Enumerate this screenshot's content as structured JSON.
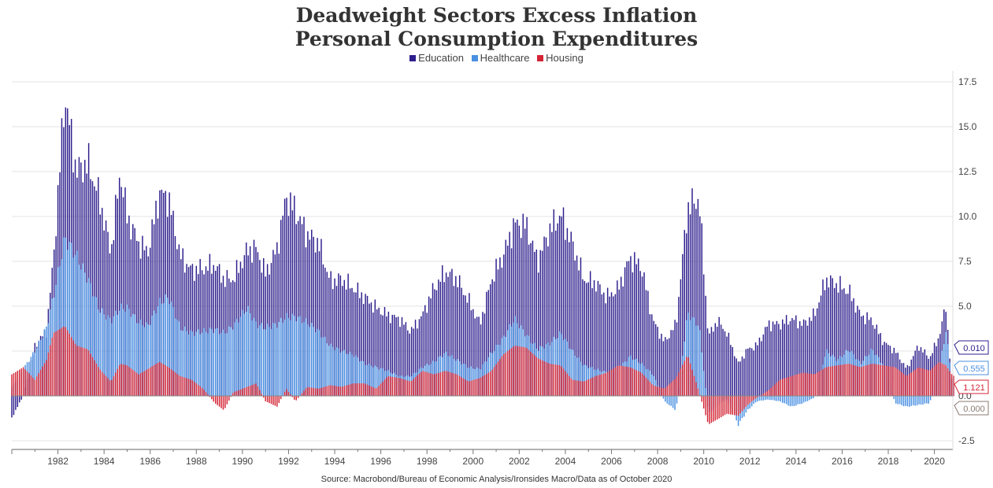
{
  "chart_data": {
    "type": "bar",
    "stacked": true,
    "title": "Deadweight Sectors Excess Inflation",
    "subtitle": "Personal Consumption Expenditures",
    "source": "Source: Macrobond/Bureau of Economic Analysis/Ironsides Macro/Data as of October 2020",
    "x_ticks": [
      "1982",
      "1984",
      "1986",
      "1988",
      "1990",
      "1992",
      "1994",
      "1996",
      "1998",
      "2000",
      "2002",
      "2004",
      "2006",
      "2008",
      "2010",
      "2012",
      "2014",
      "2016",
      "2018",
      "2020"
    ],
    "y_ticks": [
      "-2.5",
      "0.0",
      "2.5",
      "5.0",
      "7.5",
      "10.0",
      "12.5",
      "15.0",
      "17.5"
    ],
    "ylim": [
      -2.5,
      17.5
    ],
    "xlim": [
      1980.0,
      2020.8
    ],
    "grid": true,
    "legend_position": "top-center",
    "series": [
      {
        "name": "Housing",
        "color": "#d32535",
        "points": [
          [
            1980.0,
            1.2
          ],
          [
            1980.5,
            1.6
          ],
          [
            1981.0,
            0.9
          ],
          [
            1981.5,
            2.0
          ],
          [
            1981.8,
            3.5
          ],
          [
            1982.3,
            3.9
          ],
          [
            1982.8,
            2.8
          ],
          [
            1983.3,
            2.6
          ],
          [
            1983.8,
            1.5
          ],
          [
            1984.3,
            0.8
          ],
          [
            1984.7,
            1.8
          ],
          [
            1985.0,
            1.7
          ],
          [
            1985.5,
            1.2
          ],
          [
            1985.9,
            1.5
          ],
          [
            1986.4,
            1.9
          ],
          [
            1986.8,
            1.6
          ],
          [
            1987.3,
            1.1
          ],
          [
            1987.8,
            0.9
          ],
          [
            1988.3,
            0.4
          ],
          [
            1988.8,
            -0.4
          ],
          [
            1989.2,
            -0.8
          ],
          [
            1989.6,
            0.2
          ],
          [
            1990.2,
            0.5
          ],
          [
            1990.6,
            0.7
          ],
          [
            1991.0,
            -0.3
          ],
          [
            1991.5,
            -0.6
          ],
          [
            1991.9,
            0.4
          ],
          [
            1992.3,
            -0.3
          ],
          [
            1992.8,
            0.5
          ],
          [
            1993.3,
            0.4
          ],
          [
            1993.8,
            0.6
          ],
          [
            1994.3,
            0.5
          ],
          [
            1994.8,
            0.7
          ],
          [
            1995.3,
            0.7
          ],
          [
            1995.8,
            0.4
          ],
          [
            1996.3,
            1.1
          ],
          [
            1996.8,
            1.0
          ],
          [
            1997.3,
            0.8
          ],
          [
            1997.8,
            1.4
          ],
          [
            1998.3,
            1.2
          ],
          [
            1998.8,
            1.4
          ],
          [
            1999.3,
            1.2
          ],
          [
            1999.8,
            0.8
          ],
          [
            2000.3,
            1.0
          ],
          [
            2000.8,
            1.4
          ],
          [
            2001.3,
            2.3
          ],
          [
            2001.8,
            2.8
          ],
          [
            2002.3,
            2.7
          ],
          [
            2002.8,
            2.1
          ],
          [
            2003.3,
            1.8
          ],
          [
            2003.8,
            1.7
          ],
          [
            2004.3,
            0.9
          ],
          [
            2004.8,
            0.8
          ],
          [
            2005.3,
            1.1
          ],
          [
            2005.8,
            1.3
          ],
          [
            2006.3,
            1.7
          ],
          [
            2006.8,
            1.6
          ],
          [
            2007.3,
            1.3
          ],
          [
            2007.8,
            0.6
          ],
          [
            2008.3,
            0.4
          ],
          [
            2008.8,
            1.0
          ],
          [
            2009.3,
            2.3
          ],
          [
            2009.8,
            0.2
          ],
          [
            2010.2,
            -1.6
          ],
          [
            2010.6,
            -1.3
          ],
          [
            2011.0,
            -1.0
          ],
          [
            2011.5,
            -1.1
          ],
          [
            2011.9,
            -0.5
          ],
          [
            2012.3,
            -0.1
          ],
          [
            2012.8,
            0.3
          ],
          [
            2013.3,
            0.9
          ],
          [
            2013.8,
            1.1
          ],
          [
            2014.3,
            1.3
          ],
          [
            2014.8,
            1.2
          ],
          [
            2015.3,
            1.6
          ],
          [
            2015.8,
            1.7
          ],
          [
            2016.3,
            1.8
          ],
          [
            2016.8,
            1.6
          ],
          [
            2017.3,
            1.8
          ],
          [
            2017.8,
            1.7
          ],
          [
            2018.3,
            1.6
          ],
          [
            2018.8,
            1.1
          ],
          [
            2019.3,
            1.6
          ],
          [
            2019.8,
            1.4
          ],
          [
            2020.2,
            1.9
          ],
          [
            2020.5,
            1.7
          ],
          [
            2020.8,
            1.121
          ]
        ]
      },
      {
        "name": "Healthcare",
        "color": "#4a90e2",
        "points": [
          [
            1980.0,
            0.5
          ],
          [
            1980.5,
            1.5
          ],
          [
            1981.0,
            2.5
          ],
          [
            1981.5,
            3.8
          ],
          [
            1981.8,
            5.5
          ],
          [
            1982.3,
            8.8
          ],
          [
            1982.8,
            7.8
          ],
          [
            1983.3,
            6.5
          ],
          [
            1983.8,
            4.8
          ],
          [
            1984.3,
            4.2
          ],
          [
            1984.7,
            4.9
          ],
          [
            1985.0,
            4.9
          ],
          [
            1985.5,
            4.1
          ],
          [
            1985.9,
            3.9
          ],
          [
            1986.4,
            5.2
          ],
          [
            1986.8,
            5.5
          ],
          [
            1987.3,
            3.8
          ],
          [
            1987.8,
            3.5
          ],
          [
            1988.3,
            3.6
          ],
          [
            1988.8,
            3.7
          ],
          [
            1989.2,
            3.5
          ],
          [
            1989.6,
            3.9
          ],
          [
            1990.2,
            4.9
          ],
          [
            1990.6,
            4.0
          ],
          [
            1991.0,
            3.8
          ],
          [
            1991.5,
            4.0
          ],
          [
            1991.9,
            4.4
          ],
          [
            1992.3,
            4.4
          ],
          [
            1992.8,
            4.1
          ],
          [
            1993.3,
            3.6
          ],
          [
            1993.8,
            2.8
          ],
          [
            1994.3,
            2.5
          ],
          [
            1994.8,
            2.3
          ],
          [
            1995.3,
            1.8
          ],
          [
            1995.8,
            1.6
          ],
          [
            1996.3,
            1.4
          ],
          [
            1996.8,
            1.1
          ],
          [
            1997.3,
            1.1
          ],
          [
            1997.8,
            1.6
          ],
          [
            1998.3,
            1.9
          ],
          [
            1998.8,
            2.4
          ],
          [
            1999.3,
            2.0
          ],
          [
            1999.8,
            1.6
          ],
          [
            2000.3,
            1.5
          ],
          [
            2000.8,
            2.4
          ],
          [
            2001.3,
            3.2
          ],
          [
            2001.8,
            4.3
          ],
          [
            2002.3,
            3.4
          ],
          [
            2002.8,
            2.6
          ],
          [
            2003.3,
            2.9
          ],
          [
            2003.8,
            3.5
          ],
          [
            2004.3,
            2.5
          ],
          [
            2004.8,
            1.7
          ],
          [
            2005.3,
            1.5
          ],
          [
            2005.8,
            1.3
          ],
          [
            2006.3,
            1.5
          ],
          [
            2006.8,
            2.2
          ],
          [
            2007.3,
            1.8
          ],
          [
            2007.8,
            1.2
          ],
          [
            2008.3,
            -0.3
          ],
          [
            2008.8,
            -0.8
          ],
          [
            2009.3,
            4.6
          ],
          [
            2009.8,
            3.9
          ],
          [
            2010.2,
            -1.0
          ],
          [
            2010.6,
            -0.5
          ],
          [
            2011.0,
            -0.2
          ],
          [
            2011.5,
            -1.6
          ],
          [
            2011.9,
            -0.8
          ],
          [
            2012.3,
            -0.3
          ],
          [
            2012.8,
            -0.2
          ],
          [
            2013.3,
            -0.3
          ],
          [
            2013.8,
            -0.6
          ],
          [
            2014.3,
            -0.4
          ],
          [
            2014.8,
            -0.1
          ],
          [
            2015.3,
            2.5
          ],
          [
            2015.8,
            2.0
          ],
          [
            2016.3,
            2.6
          ],
          [
            2016.8,
            1.8
          ],
          [
            2017.3,
            2.6
          ],
          [
            2017.8,
            1.7
          ],
          [
            2018.3,
            -0.4
          ],
          [
            2018.8,
            -0.6
          ],
          [
            2019.3,
            -0.5
          ],
          [
            2019.8,
            -0.4
          ],
          [
            2020.2,
            1.5
          ],
          [
            2020.5,
            3.6
          ],
          [
            2020.8,
            0.555
          ]
        ]
      },
      {
        "name": "Education",
        "color": "#2d1e8c",
        "points": [
          [
            1980.0,
            -1.2
          ],
          [
            1980.5,
            0.0
          ],
          [
            1981.0,
            2.8
          ],
          [
            1981.5,
            3.6
          ],
          [
            1981.8,
            7.5
          ],
          [
            1982.3,
            16.8
          ],
          [
            1982.8,
            12.5
          ],
          [
            1983.3,
            13.0
          ],
          [
            1983.8,
            11.0
          ],
          [
            1984.3,
            8.0
          ],
          [
            1984.7,
            12.5
          ],
          [
            1985.0,
            10.0
          ],
          [
            1985.5,
            8.5
          ],
          [
            1985.9,
            8.0
          ],
          [
            1986.4,
            11.3
          ],
          [
            1986.8,
            11.0
          ],
          [
            1987.3,
            7.8
          ],
          [
            1987.8,
            7.0
          ],
          [
            1988.3,
            7.1
          ],
          [
            1988.8,
            7.3
          ],
          [
            1989.2,
            6.5
          ],
          [
            1989.6,
            6.5
          ],
          [
            1990.2,
            8.1
          ],
          [
            1990.6,
            8.2
          ],
          [
            1991.0,
            6.8
          ],
          [
            1991.5,
            8.2
          ],
          [
            1991.9,
            11.1
          ],
          [
            1992.3,
            10.3
          ],
          [
            1992.8,
            9.0
          ],
          [
            1993.3,
            8.5
          ],
          [
            1993.8,
            6.4
          ],
          [
            1994.3,
            6.5
          ],
          [
            1994.8,
            6.0
          ],
          [
            1995.3,
            5.5
          ],
          [
            1995.8,
            4.9
          ],
          [
            1996.3,
            4.5
          ],
          [
            1996.8,
            4.3
          ],
          [
            1997.3,
            3.6
          ],
          [
            1997.8,
            4.5
          ],
          [
            1998.3,
            6.0
          ],
          [
            1998.8,
            6.9
          ],
          [
            1999.3,
            6.5
          ],
          [
            1999.8,
            5.3
          ],
          [
            2000.3,
            4.0
          ],
          [
            2000.8,
            6.5
          ],
          [
            2001.3,
            7.8
          ],
          [
            2001.8,
            9.6
          ],
          [
            2002.3,
            9.5
          ],
          [
            2002.8,
            7.5
          ],
          [
            2003.3,
            9.2
          ],
          [
            2003.8,
            10.1
          ],
          [
            2004.3,
            8.5
          ],
          [
            2004.8,
            6.5
          ],
          [
            2005.3,
            6.3
          ],
          [
            2005.8,
            5.5
          ],
          [
            2006.3,
            6.0
          ],
          [
            2006.8,
            7.7
          ],
          [
            2007.3,
            7.2
          ],
          [
            2007.8,
            4.2
          ],
          [
            2008.3,
            3.0
          ],
          [
            2008.8,
            4.0
          ],
          [
            2009.3,
            10.5
          ],
          [
            2009.8,
            11.0
          ],
          [
            2010.2,
            3.3
          ],
          [
            2010.6,
            4.2
          ],
          [
            2011.0,
            3.5
          ],
          [
            2011.5,
            1.8
          ],
          [
            2011.9,
            2.6
          ],
          [
            2012.3,
            2.8
          ],
          [
            2012.8,
            4.0
          ],
          [
            2013.3,
            4.0
          ],
          [
            2013.8,
            4.3
          ],
          [
            2014.3,
            4.0
          ],
          [
            2014.8,
            4.5
          ],
          [
            2015.3,
            6.5
          ],
          [
            2015.8,
            6.2
          ],
          [
            2016.3,
            5.8
          ],
          [
            2016.8,
            4.5
          ],
          [
            2017.3,
            4.2
          ],
          [
            2017.8,
            3.0
          ],
          [
            2018.3,
            2.5
          ],
          [
            2018.8,
            1.5
          ],
          [
            2019.3,
            2.8
          ],
          [
            2019.8,
            2.1
          ],
          [
            2020.2,
            3.3
          ],
          [
            2020.5,
            5.0
          ],
          [
            2020.8,
            0.01
          ]
        ]
      }
    ],
    "end_labels": [
      {
        "series": "Education",
        "value": "0.010",
        "color": "#2d1e8c"
      },
      {
        "series": "Healthcare",
        "value": "0.555",
        "color": "#4a90e2"
      },
      {
        "series": "Housing",
        "value": "1.121",
        "color": "#d32535"
      },
      {
        "series": "Zero line",
        "value": "0.000",
        "color": "#8a7a72"
      }
    ]
  }
}
